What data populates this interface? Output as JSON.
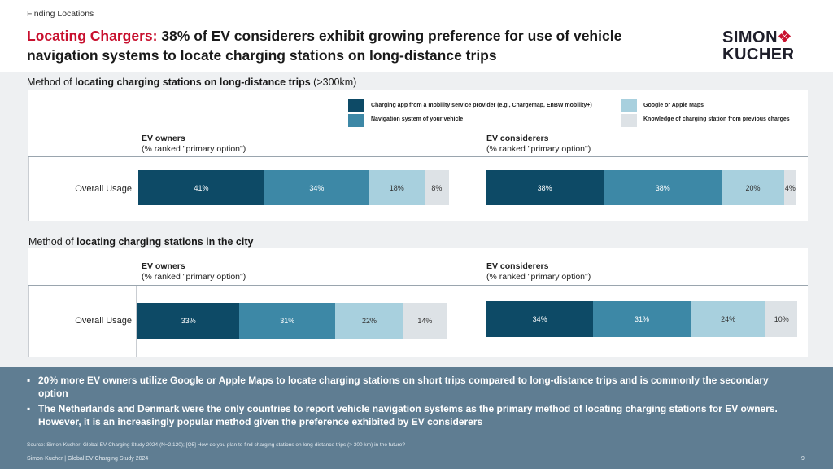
{
  "header": {
    "section": "Finding Locations",
    "title_accent": "Locating Chargers:",
    "title_rest": " 38% of EV considerers exhibit growing preference for use of vehicle navigation systems to locate charging stations on long-distance trips",
    "logo_line1": "SIMON",
    "logo_line2": "KUCHER"
  },
  "legend": [
    {
      "label": "Charging app from a mobility service provider (e.g., Chargemap, EnBW mobility+)",
      "color": "#0d4a66"
    },
    {
      "label": "Navigation system of your vehicle",
      "color": "#3d88a6"
    },
    {
      "label": "Google or Apple Maps",
      "color": "#a8d0de"
    },
    {
      "label": "Knowledge of charging station from previous charges",
      "color": "#dde2e6"
    }
  ],
  "chart_data": [
    {
      "type": "bar",
      "orientation": "horizontal-stacked-100",
      "method_prefix": "Method of ",
      "method_bold": "locating charging stations on long-distance trips",
      "method_suffix": " (>300km)",
      "row_label": "Overall Usage",
      "series_names": [
        "Charging app from a mobility service provider (e.g., Chargemap, EnBW mobility+)",
        "Navigation system of your vehicle",
        "Google or Apple Maps",
        "Knowledge of charging station from previous charges"
      ],
      "groups": [
        {
          "name": "EV owners",
          "subtitle": "(% ranked \"primary option\")",
          "values": [
            41,
            34,
            18,
            8
          ],
          "labels": [
            "41%",
            "34%",
            "18%",
            "8%"
          ]
        },
        {
          "name": "EV considerers",
          "subtitle": "(% ranked \"primary option\")",
          "values": [
            38,
            38,
            20,
            4
          ],
          "labels": [
            "38%",
            "38%",
            "20%",
            "4%"
          ]
        }
      ]
    },
    {
      "type": "bar",
      "orientation": "horizontal-stacked-100",
      "method_prefix": "Method of ",
      "method_bold": "locating charging stations in the city",
      "method_suffix": "",
      "row_label": "Overall Usage",
      "series_names": [
        "Charging app from a mobility service provider (e.g., Chargemap, EnBW mobility+)",
        "Navigation system of your vehicle",
        "Google or Apple Maps",
        "Knowledge of charging station from previous charges"
      ],
      "groups": [
        {
          "name": "EV owners",
          "subtitle": "(% ranked \"primary option\")",
          "values": [
            33,
            31,
            22,
            14
          ],
          "labels": [
            "33%",
            "31%",
            "22%",
            "14%"
          ]
        },
        {
          "name": "EV considerers",
          "subtitle": "(% ranked \"primary option\")",
          "values": [
            34,
            31,
            24,
            10
          ],
          "labels": [
            "34%",
            "31%",
            "24%",
            "10%"
          ]
        }
      ]
    }
  ],
  "bullets": [
    "20% more EV owners utilize Google or Apple Maps to locate charging stations on short trips compared to long-distance trips and is commonly the secondary option",
    "The Netherlands and Denmark were the only countries to report vehicle navigation systems as the primary method of locating charging stations for EV owners. However, it is an increasingly popular method given the preference exhibited by EV considerers"
  ],
  "source": "Source: Simon-Kucher; Global EV Charging Study 2024 (N=2,120); [Q5] How do you plan to find charging stations on long-distance trips (> 300 km) in the future?",
  "footer": {
    "left": "Simon-Kucher | Global EV Charging Study 2024",
    "page": "9"
  },
  "colors": {
    "accent": "#c8102e",
    "bottom_band": "#5f7d92",
    "text_dark_segments": "#ffffff",
    "text_light_segments": "#333333"
  }
}
